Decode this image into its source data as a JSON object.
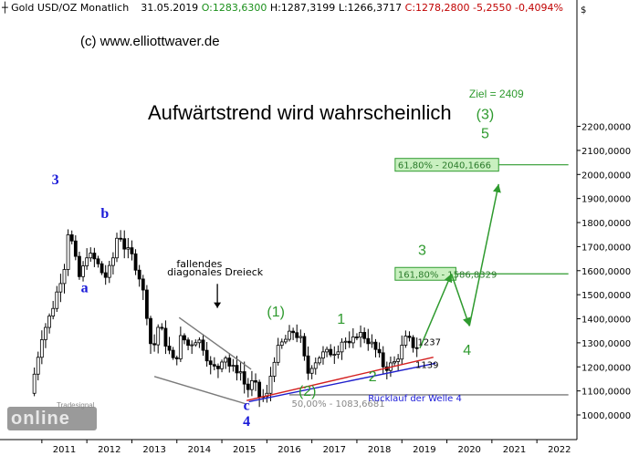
{
  "header": {
    "symbol_icon": "cross-icon",
    "instrument": "Gold USD/OZ Monatlich",
    "date": "31.05.2019",
    "open": "O:1283,6300",
    "high": "H:1287,3199",
    "low": "L:1266,3717",
    "close": "C:1278,2800",
    "change": "-5,2550",
    "change_pct": "-0,4094%"
  },
  "colors": {
    "green": "#2e9a2e",
    "red": "#d00000",
    "blue": "#1a1ad8",
    "blue_line": "#1f1fcc",
    "red_line": "#d42020",
    "candle": "#000000",
    "target_fill": "#c9f0c0",
    "grey": "#7a7a7a"
  },
  "chart_data": {
    "type": "candlestick",
    "title": "Aufwärtstrend wird wahrscheinlich",
    "copyright": "(c) www.elliottwaver.de",
    "y_axis_position": "right",
    "ylim": [
      920,
      2380
    ],
    "x_range": [
      2010.6,
      2022.9
    ],
    "y_ticks": [
      "1000,0000",
      "1100,0000",
      "1200,0000",
      "1300,0000",
      "1400,0000",
      "1500,0000",
      "1600,0000",
      "1700,0000",
      "1800,0000",
      "1900,0000",
      "2000,0000",
      "2100,0000",
      "2200,0000"
    ],
    "x_ticks": [
      "2011",
      "2012",
      "2013",
      "2014",
      "2015",
      "2016",
      "2017",
      "2018",
      "2019",
      "2020",
      "2021",
      "2022"
    ],
    "grid": false,
    "close_path": [
      [
        2010.75,
        1090
      ],
      [
        2011.0,
        1330
      ],
      [
        2011.2,
        1420
      ],
      [
        2011.35,
        1520
      ],
      [
        2011.5,
        1620
      ],
      [
        2011.6,
        1790
      ],
      [
        2011.7,
        1680
      ],
      [
        2011.85,
        1560
      ],
      [
        2012.0,
        1670
      ],
      [
        2012.2,
        1640
      ],
      [
        2012.4,
        1570
      ],
      [
        2012.55,
        1620
      ],
      [
        2012.7,
        1770
      ],
      [
        2012.85,
        1690
      ],
      [
        2013.0,
        1660
      ],
      [
        2013.15,
        1590
      ],
      [
        2013.3,
        1470
      ],
      [
        2013.45,
        1250
      ],
      [
        2013.6,
        1380
      ],
      [
        2013.75,
        1300
      ],
      [
        2013.95,
        1210
      ],
      [
        2014.1,
        1330
      ],
      [
        2014.25,
        1290
      ],
      [
        2014.45,
        1320
      ],
      [
        2014.6,
        1280
      ],
      [
        2014.75,
        1200
      ],
      [
        2014.9,
        1190
      ],
      [
        2015.05,
        1260
      ],
      [
        2015.2,
        1190
      ],
      [
        2015.4,
        1190
      ],
      [
        2015.55,
        1100
      ],
      [
        2015.7,
        1140
      ],
      [
        2015.85,
        1070
      ],
      [
        2016.0,
        1080
      ],
      [
        2016.15,
        1230
      ],
      [
        2016.3,
        1290
      ],
      [
        2016.45,
        1320
      ],
      [
        2016.6,
        1350
      ],
      [
        2016.75,
        1310
      ],
      [
        2016.9,
        1170
      ],
      [
        2017.0,
        1210
      ],
      [
        2017.2,
        1250
      ],
      [
        2017.4,
        1260
      ],
      [
        2017.55,
        1270
      ],
      [
        2017.7,
        1320
      ],
      [
        2017.85,
        1280
      ],
      [
        2018.0,
        1340
      ],
      [
        2018.15,
        1330
      ],
      [
        2018.3,
        1300
      ],
      [
        2018.45,
        1260
      ],
      [
        2018.6,
        1200
      ],
      [
        2018.7,
        1200
      ],
      [
        2018.85,
        1220
      ],
      [
        2019.0,
        1280
      ],
      [
        2019.1,
        1320
      ],
      [
        2019.25,
        1290
      ],
      [
        2019.4,
        1278
      ]
    ],
    "trendlines": [
      {
        "name": "falling diagonal triangle upper",
        "color": "grey",
        "points": [
          [
            2014.05,
            1405
          ],
          [
            2015.65,
            1190
          ]
        ]
      },
      {
        "name": "falling diagonal triangle lower",
        "color": "grey",
        "points": [
          [
            2013.5,
            1160
          ],
          [
            2015.55,
            1045
          ]
        ]
      },
      {
        "name": "blue support",
        "color": "blue_line",
        "points": [
          [
            2015.6,
            1055
          ],
          [
            2019.75,
            1215
          ]
        ]
      },
      {
        "name": "red support",
        "color": "red_line",
        "points": [
          [
            2015.55,
            1060
          ],
          [
            2019.7,
            1240
          ]
        ]
      },
      {
        "name": "Rücklauf line",
        "color": "grey",
        "points": [
          [
            2016.5,
            1083.7
          ],
          [
            2022.7,
            1083.7
          ]
        ]
      }
    ],
    "forecast_path": [
      [
        2019.4,
        1278
      ],
      [
        2020.1,
        1586.8
      ],
      [
        2020.5,
        1370
      ],
      [
        2021.15,
        1960
      ]
    ],
    "target_levels": [
      {
        "label": "61,80% - 2040,1666",
        "value": 2040.1666,
        "box_from": 2018.85,
        "box_to": 2021.15,
        "line_to": 2022.7
      },
      {
        "label": "161,80% - 1586,8329",
        "value": 1586.8329,
        "box_from": 2018.85,
        "box_to": 2020.2,
        "line_to": 2022.7
      }
    ],
    "retracement": {
      "label": "50,00% - 1083,6681",
      "value": 1083.6681
    },
    "retracement_note": "Rücklauf der Welle 4",
    "annotations": [
      {
        "text": "Ziel = 2409",
        "x": 2021.1,
        "y": 2320,
        "style": "green"
      },
      {
        "text": "(3)",
        "x": 2020.85,
        "y": 2230,
        "style": "green"
      },
      {
        "text": "5",
        "x": 2020.85,
        "y": 2150,
        "style": "green"
      },
      {
        "text": "3",
        "x": 2019.45,
        "y": 1665,
        "style": "green"
      },
      {
        "text": "4",
        "x": 2020.45,
        "y": 1250,
        "style": "green"
      },
      {
        "text": "(1)",
        "x": 2016.2,
        "y": 1410,
        "style": "green"
      },
      {
        "text": "1",
        "x": 2017.65,
        "y": 1380,
        "style": "green"
      },
      {
        "text": "(2)",
        "x": 2016.9,
        "y": 1080,
        "style": "green"
      },
      {
        "text": "2",
        "x": 2018.35,
        "y": 1140,
        "style": "green"
      },
      {
        "text": "3",
        "x": 2011.3,
        "y": 1960,
        "style": "blue"
      },
      {
        "text": "b",
        "x": 2012.4,
        "y": 1820,
        "style": "blue"
      },
      {
        "text": "a",
        "x": 2011.95,
        "y": 1510,
        "style": "blue"
      },
      {
        "text": "c",
        "x": 2015.55,
        "y": 1020,
        "style": "blue"
      },
      {
        "text": "4",
        "x": 2015.55,
        "y": 955,
        "style": "blue"
      },
      {
        "text": "1237",
        "x": 2019.35,
        "y": 1290,
        "style": "black"
      },
      {
        "text": "1139",
        "x": 2019.3,
        "y": 1195,
        "style": "black"
      },
      {
        "text": "fallendes",
        "x": 2014.5,
        "y": 1615,
        "style": "black"
      },
      {
        "text": "diagonales Dreieck",
        "x": 2014.85,
        "y": 1580,
        "style": "black"
      }
    ]
  },
  "footer": {
    "logo_brand": "Tradesignal",
    "logo_word": "online"
  }
}
